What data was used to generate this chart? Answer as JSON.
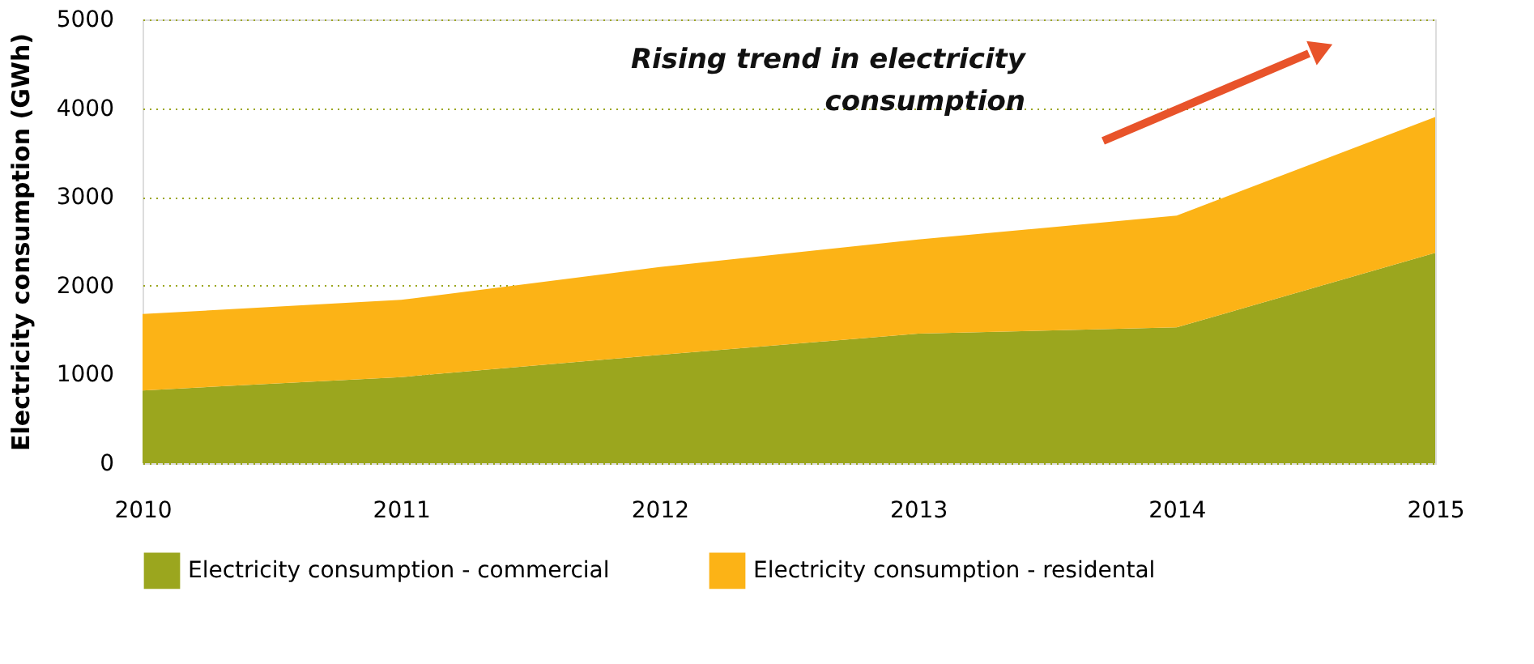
{
  "chart_data": {
    "type": "area",
    "ylabel": "Electricity consumption (GWh)",
    "categories": [
      "2010",
      "2011",
      "2012",
      "2013",
      "2014",
      "2015"
    ],
    "series": [
      {
        "name": "Electricity consumption - commercial",
        "color": "#9ba61e",
        "values": [
          820,
          970,
          1220,
          1460,
          1530,
          2370
        ]
      },
      {
        "name": "Electricity consumption - residental",
        "color": "#fcb316",
        "values": [
          860,
          870,
          990,
          1060,
          1260,
          1530
        ]
      }
    ],
    "stacked": true,
    "ylim": [
      0,
      5000
    ],
    "yticks": [
      0,
      1000,
      2000,
      3000,
      4000,
      5000
    ],
    "grid": "y",
    "legend": "bottom",
    "annotations": [
      "Rising trend in electricity consumption"
    ]
  }
}
